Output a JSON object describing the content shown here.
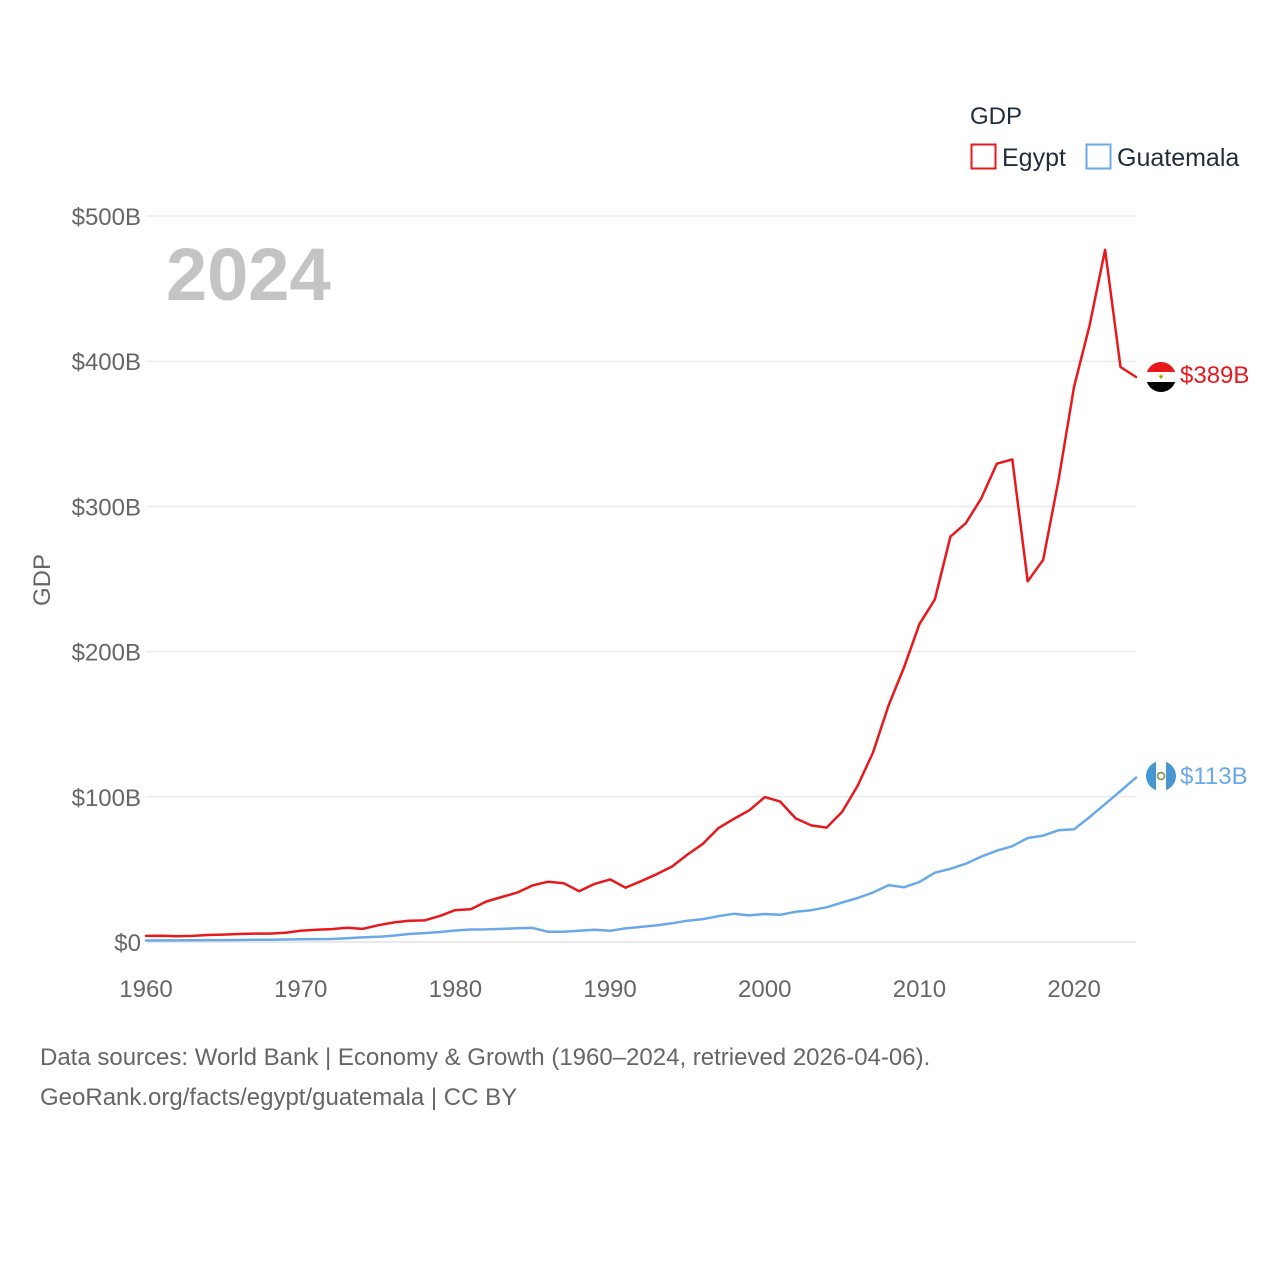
{
  "chart_data": {
    "type": "line",
    "legend_title": "GDP",
    "ylabel": "GDP",
    "xlabel": "",
    "current_year_label": "2024",
    "xlim": [
      1960,
      2024
    ],
    "ylim": [
      0,
      500
    ],
    "x_ticks": [
      1960,
      1970,
      1980,
      1990,
      2000,
      2010,
      2020
    ],
    "x_tick_labels": [
      "1960",
      "1970",
      "1980",
      "1990",
      "2000",
      "2010",
      "2020"
    ],
    "y_ticks": [
      0,
      100,
      200,
      300,
      400,
      500
    ],
    "y_tick_labels": [
      "$0",
      "$100B",
      "$200B",
      "$300B",
      "$400B",
      "$500B"
    ],
    "grid": true,
    "legend_position": "top-right",
    "units": "billions of US dollars",
    "x": [
      1960,
      1961,
      1962,
      1963,
      1964,
      1965,
      1966,
      1967,
      1968,
      1969,
      1970,
      1971,
      1972,
      1973,
      1974,
      1975,
      1976,
      1977,
      1978,
      1979,
      1980,
      1981,
      1982,
      1983,
      1984,
      1985,
      1986,
      1987,
      1988,
      1989,
      1990,
      1991,
      1992,
      1993,
      1994,
      1995,
      1996,
      1997,
      1998,
      1999,
      2000,
      2001,
      2002,
      2003,
      2004,
      2005,
      2006,
      2007,
      2008,
      2009,
      2010,
      2011,
      2012,
      2013,
      2014,
      2015,
      2016,
      2017,
      2018,
      2019,
      2020,
      2021,
      2022,
      2023,
      2024
    ],
    "series": [
      {
        "name": "Egypt",
        "color": "#e8191d",
        "end_label": "$389B",
        "flag": "egypt-flag",
        "values": [
          4.2,
          4.3,
          4.0,
          4.2,
          4.8,
          5.1,
          5.5,
          5.8,
          5.8,
          6.4,
          7.8,
          8.4,
          8.9,
          9.8,
          9.0,
          11.5,
          13.4,
          14.6,
          14.9,
          18.0,
          22.0,
          22.5,
          27.9,
          31.0,
          34.0,
          39.0,
          41.5,
          40.5,
          35.0,
          40.0,
          43.1,
          37.4,
          41.9,
          46.6,
          51.9,
          60.2,
          67.6,
          78.4,
          84.8,
          90.7,
          99.8,
          96.7,
          85.1,
          80.3,
          78.8,
          89.6,
          107.5,
          130.5,
          162.8,
          189.1,
          218.9,
          236.0,
          279.1,
          288.4,
          305.6,
          329.4,
          332.4,
          248.4,
          263.2,
          318.7,
          382.5,
          424.7,
          476.7,
          396.0,
          389.1
        ]
      },
      {
        "name": "Guatemala",
        "color": "#6aa9e8",
        "end_label": "$113B",
        "flag": "guatemala-flag",
        "values": [
          1.0,
          1.1,
          1.1,
          1.2,
          1.3,
          1.3,
          1.4,
          1.5,
          1.6,
          1.7,
          1.9,
          2.0,
          2.1,
          2.6,
          3.2,
          3.6,
          4.4,
          5.5,
          6.1,
          6.9,
          7.9,
          8.6,
          8.7,
          9.0,
          9.5,
          9.7,
          7.0,
          7.1,
          7.8,
          8.4,
          7.7,
          9.4,
          10.4,
          11.4,
          12.9,
          14.7,
          15.8,
          17.8,
          19.4,
          18.3,
          19.3,
          18.7,
          20.8,
          21.9,
          23.9,
          27.2,
          30.2,
          34.1,
          39.1,
          37.7,
          41.3,
          47.7,
          50.4,
          53.9,
          58.8,
          62.9,
          66.0,
          71.6,
          73.3,
          77.0,
          77.6,
          86.0,
          95.0,
          104.0,
          113.2
        ]
      }
    ]
  },
  "footer": {
    "sources": "Data sources: World Bank | Economy & Growth (1960–2024, retrieved 2026-04-06).",
    "credit": "GeoRank.org/facts/egypt/guatemala | CC BY"
  }
}
